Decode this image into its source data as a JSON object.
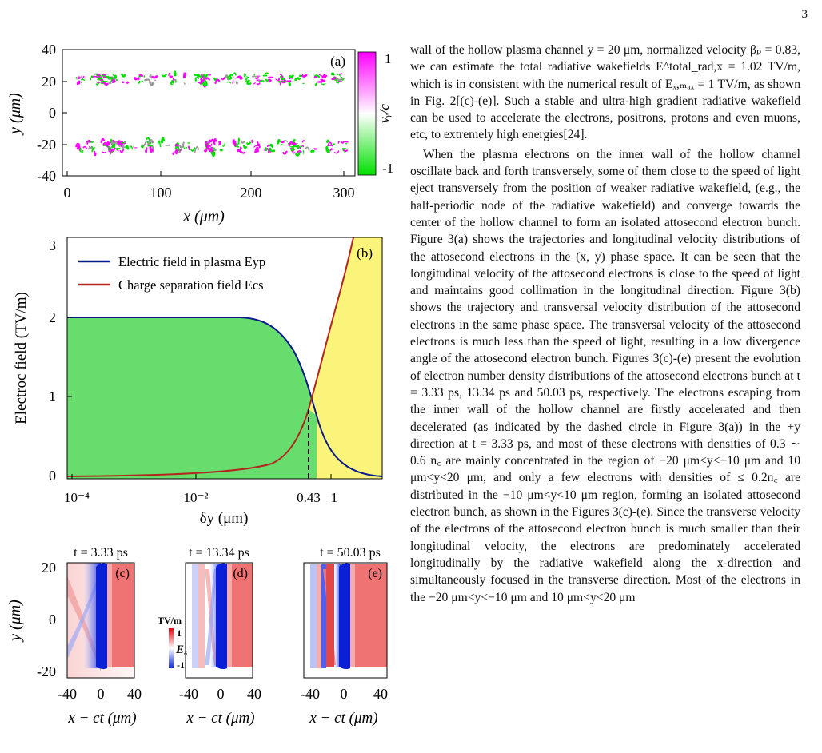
{
  "page_number": "3",
  "figure": {
    "panel_a": {
      "label": "(a)",
      "xlabel": "x (μm)",
      "ylabel": "y (μm)",
      "xticks": [
        "0",
        "100",
        "200",
        "300"
      ],
      "yticks": [
        "40",
        "20",
        "0",
        "-20",
        "-40"
      ],
      "colorbar_label": "vᵧ/c",
      "colorbar_ticks": [
        "1",
        "-1"
      ],
      "colors": {
        "pos": "#ff00ff",
        "neg": "#00e000",
        "mid": "#ffffff"
      }
    },
    "panel_b": {
      "label": "(b)",
      "xlabel": "δy (μm)",
      "ylabel": "Electroc field (TV/m)",
      "xticks": [
        "10⁻⁴",
        "10⁻²",
        "0.43",
        "1"
      ],
      "yticks": [
        "3",
        "2",
        "1",
        "0"
      ],
      "legend": [
        "Electric field in plasma Eyp",
        "Charge separation field Ecs"
      ],
      "colors": {
        "plasma_line": "#0a1a8c",
        "cs_line": "#b3261e",
        "plasma_fill": "#66dd6d",
        "cs_fill": "#fbf47a"
      }
    },
    "panels_cde": {
      "titles": [
        "t = 3.33 ps",
        "t = 13.34 ps",
        "t = 50.03 ps"
      ],
      "labels": [
        "(c)",
        "(d)",
        "(e)"
      ],
      "xlabel": "x − ct (μm)",
      "ylabel": "y (μm)",
      "xticks": [
        "-40",
        "0",
        "40"
      ],
      "yticks": [
        "20",
        "0",
        "-20"
      ],
      "colorbar_unit": "TV/m",
      "colorbar_label": "Eₓ",
      "colorbar_ticks": [
        "1",
        "-1"
      ]
    }
  },
  "text": {
    "p1": "wall of the hollow plasma channel y = 20 μm, normalized velocity βₚ = 0.83, we can estimate the total radiative wakefields E^total_rad,x = 1.02 TV/m, which is in consistent with the numerical result of Eₓ,ₘₐₓ = 1 TV/m, as shown in Fig. 2[(c)-(e)]. Such a stable and ultra-high gradient radiative wakefield can be used to accelerate the electrons, positrons, protons and even muons, etc, to extremely high energies[24].",
    "p2": "When the plasma electrons on the inner wall of the hollow channel oscillate back and forth transversely, some of them close to the speed of light eject transversely from the position of weaker radiative wakefield, (e.g., the half-periodic node of the radiative wakefield) and converge towards the center of the hollow channel to form an isolated attosecond electron bunch. Figure 3(a) shows the trajectories and longitudinal velocity distributions of the attosecond electrons in the (x, y) phase space. It can be seen that the longitudinal velocity of the attosecond electrons is close to the speed of light and maintains good collimation in the longitudinal direction. Figure 3(b) shows the trajectory and transversal velocity distribution of the attosecond electrons in the same phase space. The transversal velocity of the attosecond electrons is much less than the speed of light, resulting in a low divergence angle of the attosecond electron bunch. Figures 3(c)-(e) present the evolution of electron number density distributions of the attosecond electrons bunch at t = 3.33 ps, 13.34 ps and 50.03 ps, respectively. The electrons escaping from the inner wall of the hollow channel are firstly accelerated and then decelerated (as indicated by the dashed circle in Figure 3(a)) in the +y direction at t = 3.33 ps, and most of these electrons with densities of 0.3 ∼ 0.6 n꜀ are mainly concentrated in the region of −20 μm<y<−10 μm and 10 μm<y<20 μm, and only a few electrons with densities of ≤ 0.2n꜀ are distributed in the −10 μm<y<10 μm region, forming an isolated attosecond electron bunch, as shown in the Figures 3(c)-(e). Since the transverse velocity of the electrons of the attosecond electron bunch is much smaller than their longitudinal velocity, the electrons are predominately accelerated longitudinally by the radiative wakefield along the x-direction and simultaneously focused in the transverse direction. Most of the electrons in the −20 μm<y<−10 μm and 10 μm<y<20 μm"
  }
}
